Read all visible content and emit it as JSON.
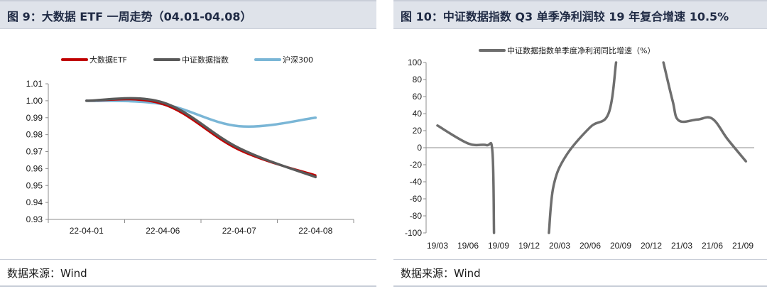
{
  "left": {
    "title": "图 9：大数据 ETF 一周走势（04.01-04.08）",
    "source": "数据来源：Wind",
    "chart_data": {
      "type": "line",
      "categories": [
        "22-04-01",
        "22-04-06",
        "22-04-07",
        "22-04-08"
      ],
      "series": [
        {
          "name": "大数据ETF",
          "color": "#c00000",
          "values": [
            1.0,
            0.998,
            0.971,
            0.956
          ]
        },
        {
          "name": "中证数据指数",
          "color": "#595959",
          "values": [
            1.0,
            0.999,
            0.972,
            0.955
          ]
        },
        {
          "name": "沪深300",
          "color": "#7ab6d6",
          "values": [
            1.0,
            0.998,
            0.985,
            0.99
          ]
        }
      ],
      "ylim": [
        0.93,
        1.01
      ],
      "yticks": [
        "1.01",
        "1.00",
        "0.99",
        "0.98",
        "0.97",
        "0.96",
        "0.95",
        "0.94",
        "0.93"
      ],
      "xlabel": "",
      "ylabel": ""
    }
  },
  "right": {
    "title": "图 10：中证数据指数 Q3 单季净利润较 19 年复合增速 10.5%",
    "source": "数据来源：Wind",
    "chart_data": {
      "type": "line",
      "categories": [
        "19/03",
        "19/06",
        "19/09",
        "19/12",
        "20/03",
        "20/06",
        "20/09",
        "20/12",
        "21/03",
        "21/06",
        "21/09"
      ],
      "segments": [
        {
          "x": [
            0,
            1,
            1.6,
            1.8,
            1.85
          ],
          "y": [
            26,
            5,
            3,
            -5,
            -100
          ]
        },
        {
          "x": [
            3.65,
            3.8,
            4.2,
            5.0,
            5.6,
            5.85
          ],
          "y": [
            -100,
            -45,
            -10,
            24,
            40,
            100
          ]
        },
        {
          "x": [
            7.4,
            7.7,
            7.9,
            8.5,
            9.0,
            9.5,
            10.1
          ],
          "y": [
            100,
            55,
            32,
            33,
            34,
            10,
            -16
          ]
        }
      ],
      "series": [
        {
          "name": "中证数据指数单季度净利润同比增速（%）",
          "color": "#6e6e6e"
        }
      ],
      "ylim": [
        -100,
        100
      ],
      "yticks": [
        "100",
        "80",
        "60",
        "40",
        "20",
        "0",
        "-20",
        "-40",
        "-60",
        "-80",
        "-100"
      ],
      "xlabel": "",
      "ylabel": ""
    }
  }
}
